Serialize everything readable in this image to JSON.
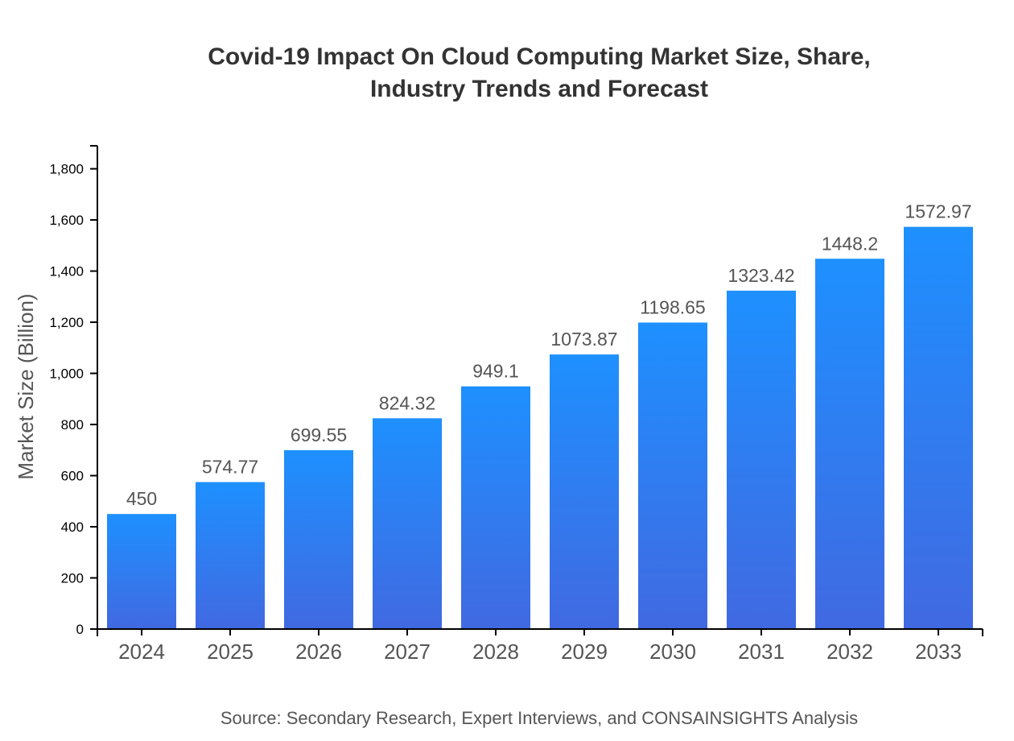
{
  "chart_data": {
    "type": "bar",
    "title_lines": [
      "Covid-19 Impact On Cloud Computing Market Size, Share,",
      "Industry Trends and Forecast"
    ],
    "xlabel": "",
    "ylabel": "Market Size (Billion)",
    "categories": [
      "2024",
      "2025",
      "2026",
      "2027",
      "2028",
      "2029",
      "2030",
      "2031",
      "2032",
      "2033"
    ],
    "values": [
      450,
      574.77,
      699.55,
      824.32,
      949.1,
      1073.87,
      1198.65,
      1323.42,
      1448.2,
      1572.97
    ],
    "data_labels": [
      "450",
      "574.77",
      "699.55",
      "824.32",
      "949.1",
      "1073.87",
      "1198.65",
      "1323.42",
      "1448.2",
      "1572.97"
    ],
    "ylim": [
      0,
      1890
    ],
    "yticks": [
      0,
      200,
      400,
      600,
      800,
      1000,
      1200,
      1400,
      1600,
      1800
    ],
    "ytick_labels": [
      "0",
      "200",
      "400",
      "600",
      "800",
      "1,000",
      "1,200",
      "1,400",
      "1,600",
      "1,800"
    ],
    "grid": false,
    "colors": {
      "bar_top": "#1e90ff",
      "bar_bottom": "#4169e1"
    },
    "source": "Source: Secondary Research, Expert Interviews, and CONSAINSIGHTS Analysis"
  }
}
